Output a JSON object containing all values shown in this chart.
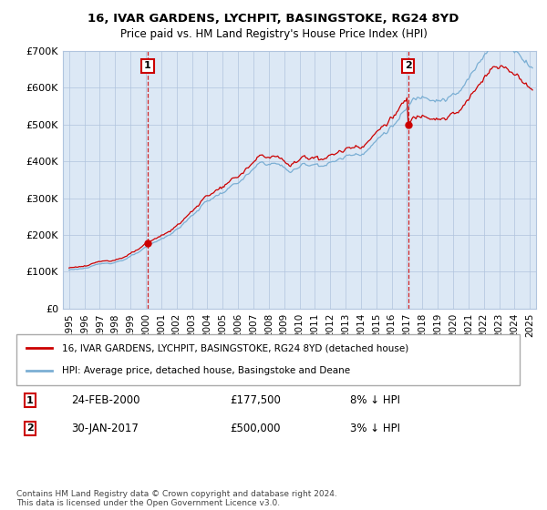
{
  "title1": "16, IVAR GARDENS, LYCHPIT, BASINGSTOKE, RG24 8YD",
  "title2": "Price paid vs. HM Land Registry's House Price Index (HPI)",
  "legend_line1": "16, IVAR GARDENS, LYCHPIT, BASINGSTOKE, RG24 8YD (detached house)",
  "legend_line2": "HPI: Average price, detached house, Basingstoke and Deane",
  "annotation1": [
    "1",
    "24-FEB-2000",
    "£177,500",
    "8% ↓ HPI"
  ],
  "annotation2": [
    "2",
    "30-JAN-2017",
    "£500,000",
    "3% ↓ HPI"
  ],
  "footnote": "Contains HM Land Registry data © Crown copyright and database right 2024.\nThis data is licensed under the Open Government Licence v3.0.",
  "hpi_color": "#7bafd4",
  "price_color": "#cc0000",
  "marker1_x": 2000.12,
  "marker1_y": 177500,
  "marker2_x": 2017.08,
  "marker2_y": 500000,
  "ylim": [
    0,
    700000
  ],
  "xlim_start": 1994.6,
  "xlim_end": 2025.4,
  "plot_bg": "#dce8f5",
  "background": "#ffffff"
}
